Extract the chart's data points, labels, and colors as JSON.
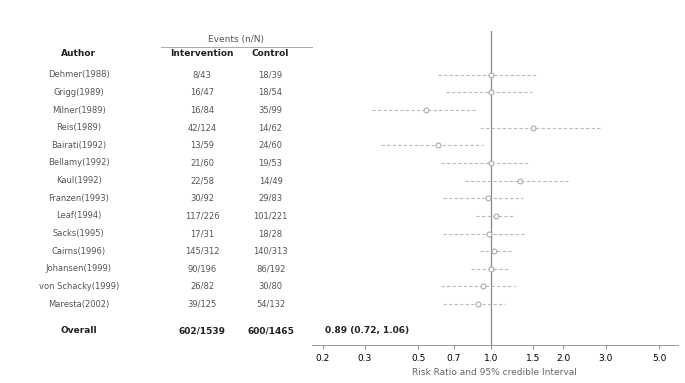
{
  "studies": [
    {
      "author": "Dehmer(1988)",
      "intervention": "8/43",
      "control": "18/39",
      "rr": 1.0,
      "ci_low": 0.6,
      "ci_high": 1.55
    },
    {
      "author": "Grigg(1989)",
      "intervention": "16/47",
      "control": "18/54",
      "rr": 1.0,
      "ci_low": 0.65,
      "ci_high": 1.48
    },
    {
      "author": "Milner(1989)",
      "intervention": "16/84",
      "control": "35/99",
      "rr": 0.54,
      "ci_low": 0.32,
      "ci_high": 0.87
    },
    {
      "author": "Reis(1989)",
      "intervention": "42/124",
      "control": "14/62",
      "rr": 1.5,
      "ci_low": 0.9,
      "ci_high": 2.9
    },
    {
      "author": "Bairati(1992)",
      "intervention": "13/59",
      "control": "24/60",
      "rr": 0.6,
      "ci_low": 0.35,
      "ci_high": 0.93
    },
    {
      "author": "Bellamy(1992)",
      "intervention": "21/60",
      "control": "19/53",
      "rr": 1.0,
      "ci_low": 0.62,
      "ci_high": 1.42
    },
    {
      "author": "Kaul(1992)",
      "intervention": "22/58",
      "control": "14/49",
      "rr": 1.32,
      "ci_low": 0.78,
      "ci_high": 2.1
    },
    {
      "author": "Franzen(1993)",
      "intervention": "30/92",
      "control": "29/83",
      "rr": 0.97,
      "ci_low": 0.63,
      "ci_high": 1.36
    },
    {
      "author": "Leaf(1994)",
      "intervention": "117/226",
      "control": "101/221",
      "rr": 1.05,
      "ci_low": 0.87,
      "ci_high": 1.23
    },
    {
      "author": "Sacks(1995)",
      "intervention": "17/31",
      "control": "18/28",
      "rr": 0.98,
      "ci_low": 0.63,
      "ci_high": 1.4
    },
    {
      "author": "Cairns(1996)",
      "intervention": "145/312",
      "control": "140/313",
      "rr": 1.03,
      "ci_low": 0.9,
      "ci_high": 1.22
    },
    {
      "author": "Johansen(1999)",
      "intervention": "90/196",
      "control": "86/192",
      "rr": 1.0,
      "ci_low": 0.83,
      "ci_high": 1.2
    },
    {
      "author": "von Schacky(1999)",
      "intervention": "26/82",
      "control": "30/80",
      "rr": 0.93,
      "ci_low": 0.62,
      "ci_high": 1.26
    },
    {
      "author": "Maresta(2002)",
      "intervention": "39/125",
      "control": "54/132",
      "rr": 0.88,
      "ci_low": 0.63,
      "ci_high": 1.15
    }
  ],
  "overall": {
    "author": "Overall",
    "intervention": "602/1539",
    "control": "600/1465",
    "label": "0.89 (0.72, 1.06)"
  },
  "col_header_events": "Events (n/N)",
  "col_header_author": "Author",
  "col_header_intervention": "Intervention",
  "col_header_control": "Control",
  "xlabel": "Risk Ratio and 95% credible Interval",
  "xaxis_ticks": [
    0.2,
    0.3,
    0.5,
    0.7,
    1.0,
    1.5,
    2.0,
    3.0,
    5.0
  ],
  "xaxis_labels": [
    "0.2",
    "0.3",
    "0.5",
    "0.7",
    "1.0",
    "1.5",
    "2.0",
    "3.0",
    "5.0"
  ],
  "point_color": "#aaaaaa",
  "line_color": "#bbbbbb",
  "text_color": "#555555",
  "bold_color": "#222222"
}
